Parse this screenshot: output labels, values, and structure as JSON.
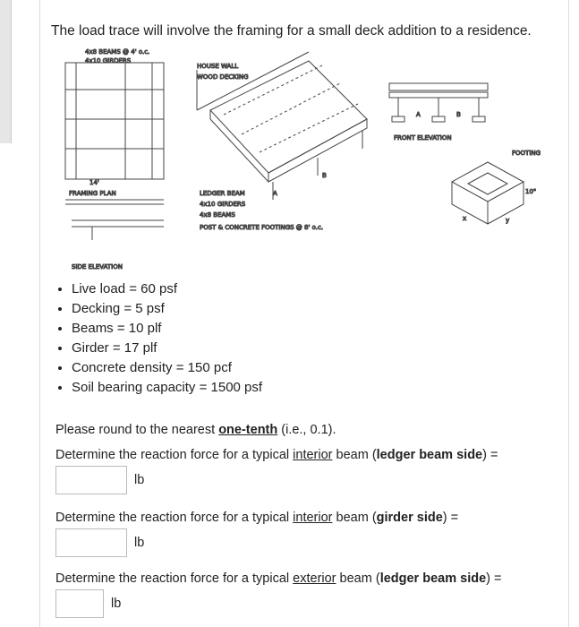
{
  "intro": "The load trace will involve the framing for a small deck addition to a residence.",
  "figure": {
    "labels": {
      "beams_note": "4x8 BEAMS @ 4' o.c.",
      "girders_note": "4x10 GIRDERS",
      "framing_plan": "FRAMING PLAN",
      "side_elevation": "SIDE ELEVATION",
      "house_wall": "HOUSE WALL",
      "wood_decking": "WOOD DECKING",
      "ledger_beam": "LEDGER BEAM",
      "girders": "4x10 GIRDERS",
      "beams": "4x8 BEAMS",
      "posts": "POST & CONCRETE FOOTINGS @ 8' o.c.",
      "a": "A",
      "b": "B",
      "front_elevation": "FRONT ELEVATION",
      "footing": "FOOTING",
      "depth": "10\"",
      "x": "x",
      "y": "y",
      "dim14": "14'"
    }
  },
  "givens": [
    "Live load = 60 psf",
    "Decking = 5 psf",
    "Beams = 10 plf",
    "Girder = 17 plf",
    "Concrete density = 150 pcf",
    "Soil bearing capacity = 1500 psf"
  ],
  "instruction": {
    "before": "Please round to the nearest ",
    "strong": "one-tenth",
    "after": " (i.e., 0.1)."
  },
  "questions": [
    {
      "before": "Determine the reaction force for a typical ",
      "link": "interior",
      "middle": " beam (",
      "strong": "ledger beam side",
      "after": ") =",
      "unit": "lb"
    },
    {
      "before": "Determine the reaction force for a typical ",
      "link": "interior",
      "middle": " beam (",
      "strong": "girder side",
      "after": ") =",
      "unit": "lb"
    },
    {
      "before": "Determine the reaction force for a typical ",
      "link": "exterior",
      "middle": " beam (",
      "strong": "ledger beam side",
      "after": ") =",
      "unit": "lb"
    }
  ]
}
